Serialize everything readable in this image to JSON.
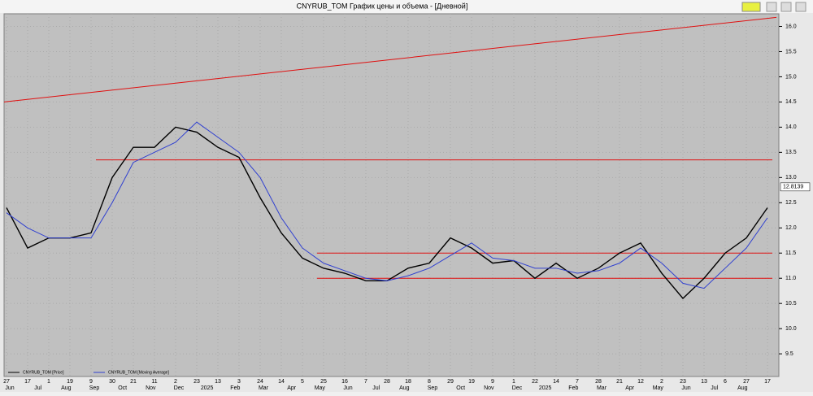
{
  "window_title": "CNYRUB_TOM График цены и объема - [Дневной]",
  "chart_data": {
    "type": "line",
    "categories": [
      "27",
      "17",
      "1",
      "19",
      "9",
      "30",
      "21",
      "11",
      "2",
      "23",
      "13",
      "3",
      "24",
      "14",
      "5",
      "25",
      "16",
      "7",
      "28",
      "18",
      "8",
      "29",
      "19",
      "9",
      "1",
      "22",
      "14",
      "7",
      "28",
      "21",
      "12",
      "2",
      "23",
      "13",
      "6",
      "27",
      "17"
    ],
    "month_labels": [
      "Jun",
      "Jul",
      "Aug",
      "Sep",
      "Oct",
      "Nov",
      "Dec",
      "2025",
      "Feb",
      "Mar",
      "Apr",
      "May",
      "Jun",
      "Jul",
      "Aug",
      "Sep",
      "Oct",
      "Nov",
      "Dec",
      "2025",
      "Feb",
      "Mar",
      "Apr",
      "May",
      "Jun",
      "Jul",
      "Aug"
    ],
    "series": [
      {
        "name": "CNYRUB_TOM [Price]",
        "color": "#000000",
        "values": [
          12.4,
          11.6,
          11.8,
          11.8,
          11.9,
          13.0,
          13.6,
          13.6,
          14.0,
          13.9,
          13.6,
          13.4,
          12.6,
          11.9,
          11.4,
          11.2,
          11.1,
          10.95,
          10.95,
          11.2,
          11.3,
          11.8,
          11.6,
          11.3,
          11.35,
          11.0,
          11.3,
          11.0,
          11.2,
          11.5,
          11.7,
          11.1,
          10.6,
          11.0,
          11.5,
          11.8,
          12.4
        ]
      },
      {
        "name": "CNYRUB_TOM [Moving Average]",
        "color": "#3040d0",
        "values": [
          12.3,
          12.0,
          11.8,
          11.8,
          11.8,
          12.5,
          13.3,
          13.5,
          13.7,
          14.1,
          13.8,
          13.5,
          13.0,
          12.2,
          11.6,
          11.3,
          11.15,
          11.0,
          10.95,
          11.05,
          11.2,
          11.45,
          11.7,
          11.4,
          11.35,
          11.2,
          11.2,
          11.1,
          11.15,
          11.3,
          11.6,
          11.3,
          10.9,
          10.8,
          11.2,
          11.6,
          12.2
        ]
      }
    ],
    "trend_line": {
      "values": [
        14.5,
        16.18
      ],
      "color": "#e01010"
    },
    "reference_lines": [
      {
        "value": 13.35,
        "color": "#e01010"
      },
      {
        "value": 11.5,
        "color": "#e01010"
      },
      {
        "value": 11.0,
        "color": "#e01010"
      }
    ],
    "last_price_label": {
      "value": 12.8139,
      "label": "12.8139"
    },
    "ylim": [
      9.05,
      16.25
    ],
    "yticks": [
      {
        "value": 16,
        "label": "16.0"
      },
      {
        "value": 15.5,
        "label": "15.5"
      },
      {
        "value": 15,
        "label": "15.0"
      },
      {
        "value": 14.5,
        "label": "14.5"
      },
      {
        "value": 14,
        "label": "14.0"
      },
      {
        "value": 13.5,
        "label": "13.5"
      },
      {
        "value": 13,
        "label": "13.0"
      },
      {
        "value": 12.5,
        "label": "12.5"
      },
      {
        "value": 12,
        "label": "12.0"
      },
      {
        "value": 11.5,
        "label": "11.5"
      },
      {
        "value": 11,
        "label": "11.0"
      },
      {
        "value": 10.5,
        "label": "10.5"
      },
      {
        "value": 10,
        "label": "10.0"
      },
      {
        "value": 9.5,
        "label": "9.5"
      }
    ],
    "grid": true
  }
}
